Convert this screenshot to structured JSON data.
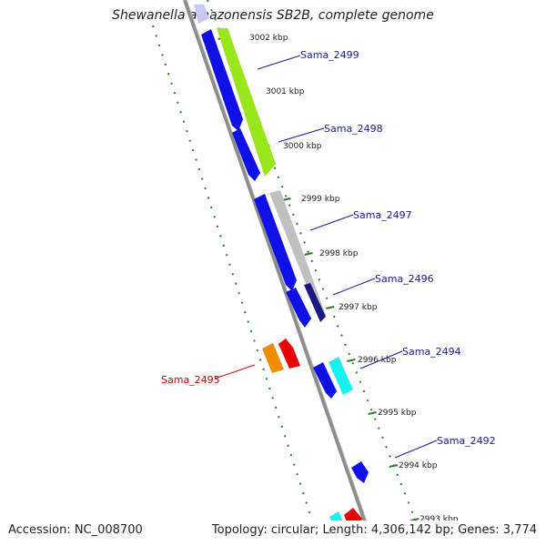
{
  "title": "Shewanella amazonensis SB2B, complete genome",
  "accession": "Accession: NC_008700",
  "summary": "Topology: circular; Length: 4,306,142 bp; Genes: 3,774",
  "colors": {
    "backbone": "#8c8c8c",
    "forward_dots": "#2d7d2d",
    "label_forward": "#1a1aa0",
    "label_reverse": "#cc0000",
    "blue": "#0f0fe8",
    "green": "#99e61a",
    "grey": "#c0c0c0",
    "orange": "#f08c00",
    "red": "#e60000",
    "cyan": "#19f0f0",
    "navy": "#1a1a80",
    "lavender": "#c8c8f5"
  },
  "ticks": [
    "3002 kbp",
    "3001 kbp",
    "3000 kbp",
    "2999 kbp",
    "2998 kbp",
    "2997 kbp",
    "2996 kbp",
    "2995 kbp",
    "2994 kbp",
    "2993 kbp"
  ],
  "labels": [
    "Sama_2499",
    "Sama_2498",
    "Sama_2497",
    "Sama_2496",
    "Sama_2494",
    "Sama_2492",
    "Sama_2495"
  ]
}
